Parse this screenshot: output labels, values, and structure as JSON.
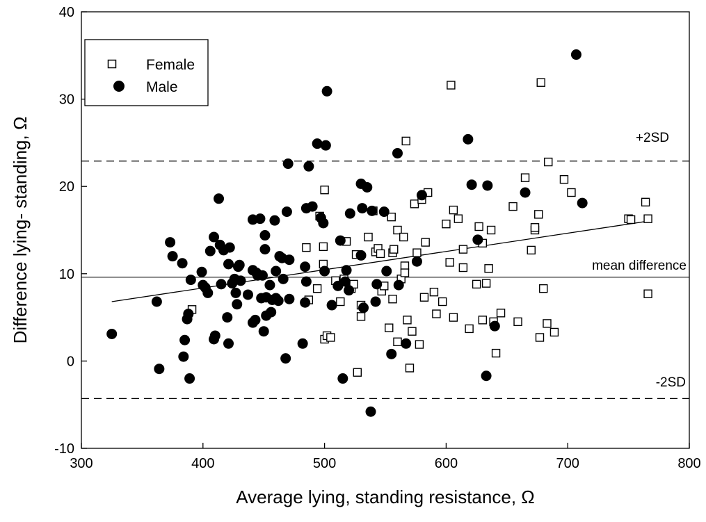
{
  "chart_data": {
    "type": "scatter",
    "title": "",
    "xlabel": "Average lying, standing resistance, Ω",
    "ylabel": "Difference lying- standing, Ω",
    "xlim": [
      300,
      800
    ],
    "ylim": [
      -10,
      40
    ],
    "xticks": [
      300,
      400,
      500,
      600,
      700,
      800
    ],
    "yticks": [
      -10,
      0,
      10,
      20,
      30,
      40
    ],
    "grid": false,
    "legend": "top-left",
    "reference_lines": [
      {
        "label": "+2SD",
        "y": 22.9,
        "style": "dashed"
      },
      {
        "label": "mean difference",
        "y": 9.6,
        "style": "solid"
      },
      {
        "label": "-2SD",
        "y": -4.3,
        "style": "dashed"
      }
    ],
    "regression_line": {
      "x": [
        325,
        765
      ],
      "y": [
        6.8,
        16.0
      ]
    },
    "series": [
      {
        "name": "Female",
        "marker": "open-square",
        "color": "#000000",
        "points": [
          [
            391,
            5.9
          ],
          [
            485,
            13.0
          ],
          [
            487,
            7.0
          ],
          [
            496,
            16.6
          ],
          [
            494,
            8.3
          ],
          [
            499,
            13.1
          ],
          [
            500,
            19.6
          ],
          [
            499,
            11.1
          ],
          [
            500,
            2.5
          ],
          [
            502,
            2.9
          ],
          [
            505,
            2.7
          ],
          [
            509,
            9.2
          ],
          [
            513,
            6.8
          ],
          [
            516,
            9.4
          ],
          [
            518,
            13.7
          ],
          [
            522,
            8.3
          ],
          [
            524,
            8.8
          ],
          [
            526,
            12.2
          ],
          [
            527,
            -1.3
          ],
          [
            530,
            6.4
          ],
          [
            530,
            5.1
          ],
          [
            536,
            14.2
          ],
          [
            540,
            17.2
          ],
          [
            542,
            12.5
          ],
          [
            544,
            12.9
          ],
          [
            546,
            12.3
          ],
          [
            547,
            8.0
          ],
          [
            549,
            8.6
          ],
          [
            553,
            3.8
          ],
          [
            555,
            16.5
          ],
          [
            556,
            7.1
          ],
          [
            556,
            12.4
          ],
          [
            557,
            12.8
          ],
          [
            560,
            15.0
          ],
          [
            560,
            2.2
          ],
          [
            563,
            9.4
          ],
          [
            565,
            14.2
          ],
          [
            566,
            10.9
          ],
          [
            566,
            10.1
          ],
          [
            567,
            25.2
          ],
          [
            568,
            4.7
          ],
          [
            570,
            -0.8
          ],
          [
            572,
            3.4
          ],
          [
            574,
            18.0
          ],
          [
            576,
            12.4
          ],
          [
            578,
            1.9
          ],
          [
            580,
            18.5
          ],
          [
            582,
            7.3
          ],
          [
            583,
            13.6
          ],
          [
            585,
            19.3
          ],
          [
            590,
            7.9
          ],
          [
            592,
            5.4
          ],
          [
            597,
            6.8
          ],
          [
            600,
            15.7
          ],
          [
            603,
            11.3
          ],
          [
            604,
            31.6
          ],
          [
            606,
            17.3
          ],
          [
            606,
            5.0
          ],
          [
            610,
            16.3
          ],
          [
            614,
            10.7
          ],
          [
            614,
            12.8
          ],
          [
            619,
            3.7
          ],
          [
            625,
            8.8
          ],
          [
            627,
            15.4
          ],
          [
            630,
            13.5
          ],
          [
            630,
            4.7
          ],
          [
            633,
            8.9
          ],
          [
            635,
            10.6
          ],
          [
            637,
            15.0
          ],
          [
            639,
            4.5
          ],
          [
            641,
            0.9
          ],
          [
            645,
            5.5
          ],
          [
            655,
            17.7
          ],
          [
            659,
            4.5
          ],
          [
            665,
            21.0
          ],
          [
            670,
            12.7
          ],
          [
            673,
            15.0
          ],
          [
            673,
            15.3
          ],
          [
            676,
            16.8
          ],
          [
            677,
            2.7
          ],
          [
            678,
            31.9
          ],
          [
            680,
            8.3
          ],
          [
            683,
            4.3
          ],
          [
            684,
            22.8
          ],
          [
            689,
            3.3
          ],
          [
            697,
            20.8
          ],
          [
            703,
            19.3
          ],
          [
            750,
            16.3
          ],
          [
            752,
            16.2
          ],
          [
            764,
            18.2
          ],
          [
            766,
            16.3
          ],
          [
            766,
            7.7
          ]
        ]
      },
      {
        "name": "Male",
        "marker": "filled-circle",
        "color": "#000000",
        "points": [
          [
            325,
            3.1
          ],
          [
            362,
            6.8
          ],
          [
            364,
            -0.9
          ],
          [
            373,
            13.6
          ],
          [
            375,
            12.0
          ],
          [
            383,
            11.2
          ],
          [
            384,
            0.5
          ],
          [
            385,
            2.4
          ],
          [
            387,
            4.8
          ],
          [
            388,
            5.4
          ],
          [
            389,
            -2.0
          ],
          [
            390,
            9.3
          ],
          [
            399,
            10.2
          ],
          [
            400,
            8.7
          ],
          [
            402,
            8.4
          ],
          [
            404,
            7.8
          ],
          [
            406,
            12.6
          ],
          [
            409,
            14.2
          ],
          [
            409,
            2.5
          ],
          [
            410,
            2.9
          ],
          [
            413,
            18.6
          ],
          [
            414,
            13.3
          ],
          [
            415,
            8.8
          ],
          [
            417,
            12.7
          ],
          [
            420,
            5.0
          ],
          [
            421,
            11.1
          ],
          [
            421,
            2.0
          ],
          [
            422,
            13.0
          ],
          [
            424,
            8.9
          ],
          [
            426,
            9.4
          ],
          [
            427,
            7.8
          ],
          [
            428,
            6.5
          ],
          [
            429,
            10.8
          ],
          [
            430,
            11.0
          ],
          [
            431,
            9.2
          ],
          [
            437,
            7.6
          ],
          [
            441,
            16.2
          ],
          [
            441,
            10.4
          ],
          [
            441,
            4.4
          ],
          [
            443,
            4.7
          ],
          [
            444,
            10.1
          ],
          [
            445,
            9.8
          ],
          [
            447,
            16.3
          ],
          [
            448,
            7.2
          ],
          [
            449,
            9.8
          ],
          [
            450,
            3.4
          ],
          [
            451,
            14.4
          ],
          [
            451,
            12.8
          ],
          [
            452,
            7.3
          ],
          [
            452,
            5.2
          ],
          [
            455,
            8.7
          ],
          [
            456,
            5.6
          ],
          [
            457,
            7.0
          ],
          [
            459,
            16.1
          ],
          [
            460,
            10.3
          ],
          [
            460,
            7.2
          ],
          [
            462,
            6.9
          ],
          [
            463,
            12.0
          ],
          [
            465,
            11.8
          ],
          [
            466,
            9.4
          ],
          [
            468,
            0.3
          ],
          [
            469,
            17.1
          ],
          [
            470,
            22.6
          ],
          [
            471,
            11.6
          ],
          [
            471,
            7.1
          ],
          [
            482,
            2.0
          ],
          [
            484,
            10.8
          ],
          [
            484,
            6.7
          ],
          [
            485,
            17.5
          ],
          [
            485,
            9.1
          ],
          [
            487,
            22.3
          ],
          [
            490,
            17.7
          ],
          [
            494,
            24.9
          ],
          [
            497,
            16.4
          ],
          [
            499,
            15.8
          ],
          [
            500,
            10.3
          ],
          [
            501,
            24.7
          ],
          [
            502,
            30.9
          ],
          [
            506,
            6.4
          ],
          [
            511,
            8.6
          ],
          [
            513,
            13.8
          ],
          [
            515,
            -2.0
          ],
          [
            517,
            9.1
          ],
          [
            518,
            10.4
          ],
          [
            520,
            8.1
          ],
          [
            521,
            16.9
          ],
          [
            530,
            20.3
          ],
          [
            530,
            12.1
          ],
          [
            531,
            17.5
          ],
          [
            532,
            6.1
          ],
          [
            535,
            19.9
          ],
          [
            538,
            -5.8
          ],
          [
            539,
            17.2
          ],
          [
            542,
            6.8
          ],
          [
            543,
            8.8
          ],
          [
            549,
            17.1
          ],
          [
            551,
            10.3
          ],
          [
            555,
            0.8
          ],
          [
            560,
            23.8
          ],
          [
            561,
            8.7
          ],
          [
            567,
            2.0
          ],
          [
            576,
            11.4
          ],
          [
            580,
            19.0
          ],
          [
            618,
            25.4
          ],
          [
            621,
            20.2
          ],
          [
            626,
            13.9
          ],
          [
            633,
            -1.7
          ],
          [
            634,
            20.1
          ],
          [
            640,
            4.0
          ],
          [
            665,
            19.3
          ],
          [
            707,
            35.1
          ],
          [
            712,
            18.1
          ]
        ]
      }
    ]
  }
}
